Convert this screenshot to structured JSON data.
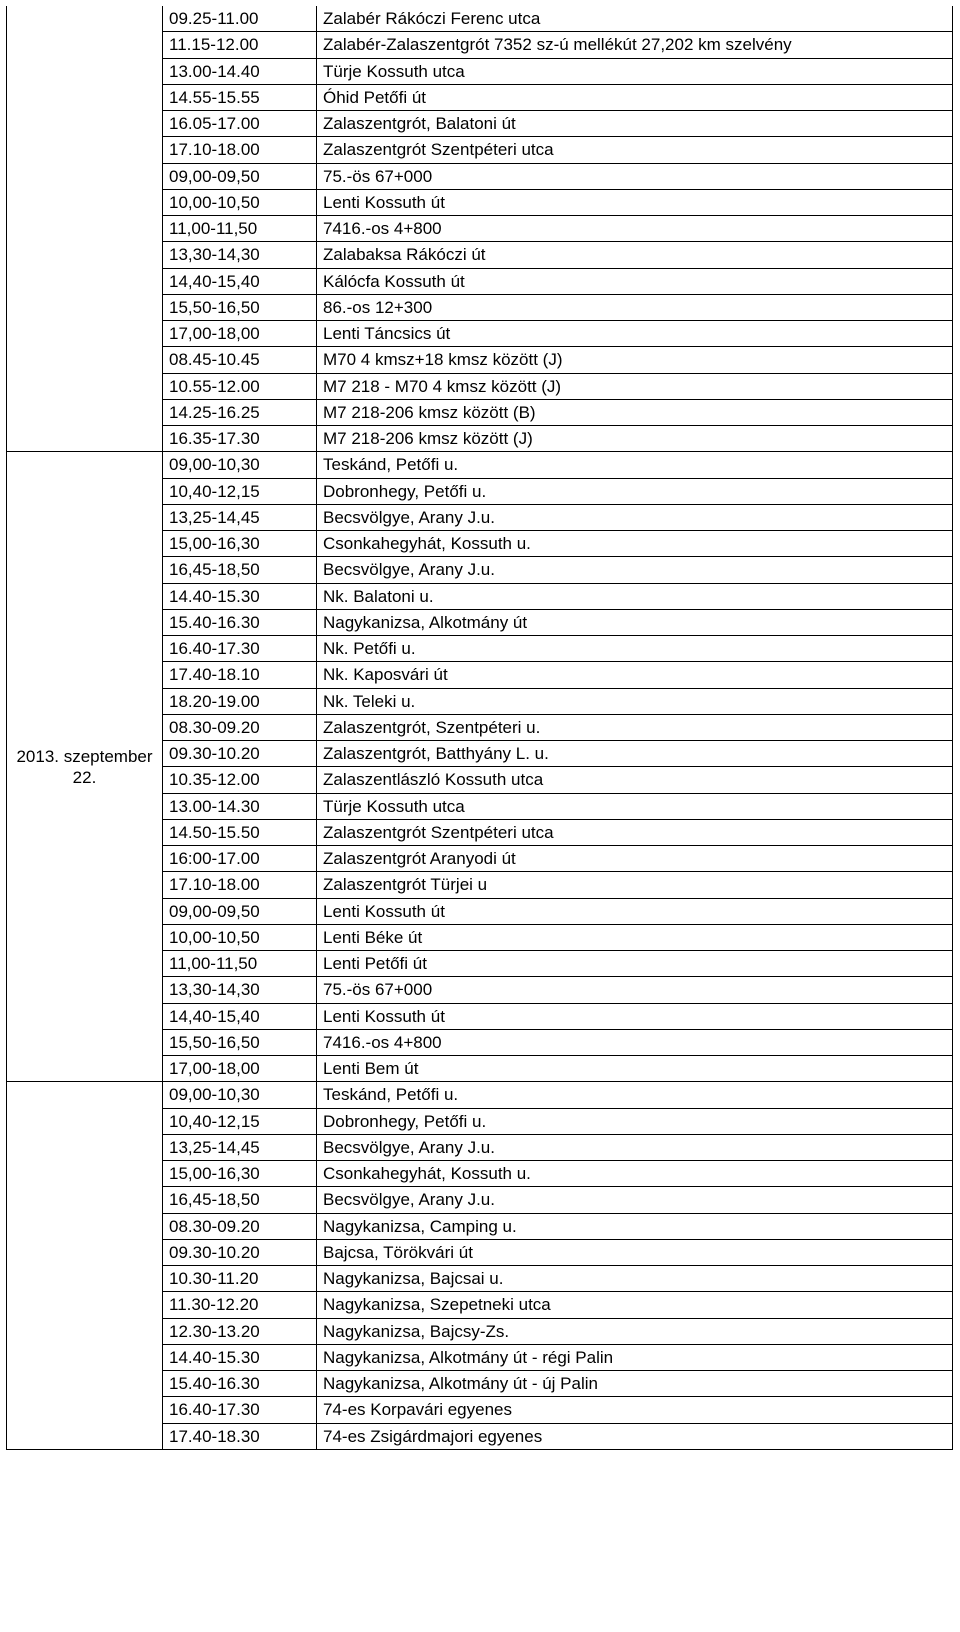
{
  "sections": [
    {
      "date_label": "",
      "rows": [
        {
          "time": "09.25-11.00",
          "desc": "Zalabér Rákóczi Ferenc utca"
        },
        {
          "time": "11.15-12.00",
          "desc": "Zalabér-Zalaszentgrót 7352 sz-ú mellékút 27,202 km szelvény"
        },
        {
          "time": "13.00-14.40",
          "desc": "Türje Kossuth utca"
        },
        {
          "time": "14.55-15.55",
          "desc": "Óhid Petőfi út"
        },
        {
          "time": "16.05-17.00",
          "desc": "Zalaszentgrót, Balatoni út"
        },
        {
          "time": "17.10-18.00",
          "desc": "Zalaszentgrót Szentpéteri utca"
        },
        {
          "time": "09,00-09,50",
          "desc": "75.-ös 67+000"
        },
        {
          "time": "10,00-10,50",
          "desc": "Lenti Kossuth út"
        },
        {
          "time": "11,00-11,50",
          "desc": "7416.-os 4+800"
        },
        {
          "time": "13,30-14,30",
          "desc": "Zalabaksa Rákóczi út"
        },
        {
          "time": "14,40-15,40",
          "desc": "Kálócfa Kossuth út"
        },
        {
          "time": "15,50-16,50",
          "desc": "86.-os 12+300"
        },
        {
          "time": "17,00-18,00",
          "desc": "Lenti Táncsics út"
        },
        {
          "time": "08.45-10.45",
          "desc": "M70 4 kmsz+18 kmsz között (J)"
        },
        {
          "time": "10.55-12.00",
          "desc": "M7 218 - M70 4 kmsz között (J)"
        },
        {
          "time": "14.25-16.25",
          "desc": "M7 218-206 kmsz között (B)"
        },
        {
          "time": "16.35-17.30",
          "desc": "M7 218-206 kmsz között (J)"
        }
      ]
    },
    {
      "date_label": "2013. szeptember 22.",
      "rows": [
        {
          "time": "09,00-10,30",
          "desc": "Teskánd, Petőfi u."
        },
        {
          "time": "10,40-12,15",
          "desc": "Dobronhegy, Petőfi u."
        },
        {
          "time": "13,25-14,45",
          "desc": "Becsvölgye, Arany J.u."
        },
        {
          "time": "15,00-16,30",
          "desc": "Csonkahegyhát, Kossuth u."
        },
        {
          "time": "16,45-18,50",
          "desc": "Becsvölgye, Arany J.u."
        },
        {
          "time": "14.40-15.30",
          "desc": "Nk. Balatoni u."
        },
        {
          "time": "15.40-16.30",
          "desc": "Nagykanizsa, Alkotmány út"
        },
        {
          "time": "16.40-17.30",
          "desc": "Nk. Petőfi u."
        },
        {
          "time": "17.40-18.10",
          "desc": "Nk. Kaposvári út"
        },
        {
          "time": "18.20-19.00",
          "desc": "Nk. Teleki u."
        },
        {
          "time": "08.30-09.20",
          "desc": "Zalaszentgrót, Szentpéteri u."
        },
        {
          "time": "09.30-10.20",
          "desc": "Zalaszentgrót, Batthyány L. u."
        },
        {
          "time": "10.35-12.00",
          "desc": "Zalaszentlászló Kossuth utca"
        },
        {
          "time": "13.00-14.30",
          "desc": "Türje Kossuth utca"
        },
        {
          "time": "14.50-15.50",
          "desc": "Zalaszentgrót Szentpéteri utca"
        },
        {
          "time": "16:00-17.00",
          "desc": "Zalaszentgrót Aranyodi út"
        },
        {
          "time": "17.10-18.00",
          "desc": "Zalaszentgrót Türjei u"
        },
        {
          "time": "09,00-09,50",
          "desc": "Lenti Kossuth út"
        },
        {
          "time": "10,00-10,50",
          "desc": "Lenti Béke út"
        },
        {
          "time": "11,00-11,50",
          "desc": "Lenti Petőfi út"
        },
        {
          "time": "13,30-14,30",
          "desc": "75.-ös 67+000"
        },
        {
          "time": "14,40-15,40",
          "desc": "Lenti Kossuth út"
        },
        {
          "time": "15,50-16,50",
          "desc": "7416.-os 4+800"
        },
        {
          "time": "17,00-18,00",
          "desc": "Lenti Bem út"
        }
      ]
    },
    {
      "date_label": "",
      "rows": [
        {
          "time": "09,00-10,30",
          "desc": "Teskánd, Petőfi u."
        },
        {
          "time": "10,40-12,15",
          "desc": "Dobronhegy, Petőfi u."
        },
        {
          "time": "13,25-14,45",
          "desc": "Becsvölgye, Arany J.u."
        },
        {
          "time": "15,00-16,30",
          "desc": "Csonkahegyhát, Kossuth u."
        },
        {
          "time": "16,45-18,50",
          "desc": "Becsvölgye, Arany J.u."
        },
        {
          "time": "08.30-09.20",
          "desc": "Nagykanizsa, Camping u."
        },
        {
          "time": "09.30-10.20",
          "desc": "Bajcsa, Törökvári út"
        },
        {
          "time": "10.30-11.20",
          "desc": "Nagykanizsa, Bajcsai u."
        },
        {
          "time": "11.30-12.20",
          "desc": "Nagykanizsa, Szepetneki utca"
        },
        {
          "time": "12.30-13.20",
          "desc": "Nagykanizsa, Bajcsy-Zs."
        },
        {
          "time": "14.40-15.30",
          "desc": "Nagykanizsa, Alkotmány út - régi Palin"
        },
        {
          "time": "15.40-16.30",
          "desc": "Nagykanizsa, Alkotmány út - új Palin"
        },
        {
          "time": "16.40-17.30",
          "desc": "74-es Korpavári egyenes"
        },
        {
          "time": "17.40-18.30",
          "desc": "74-es Zsigárdmajori egyenes"
        }
      ]
    }
  ]
}
